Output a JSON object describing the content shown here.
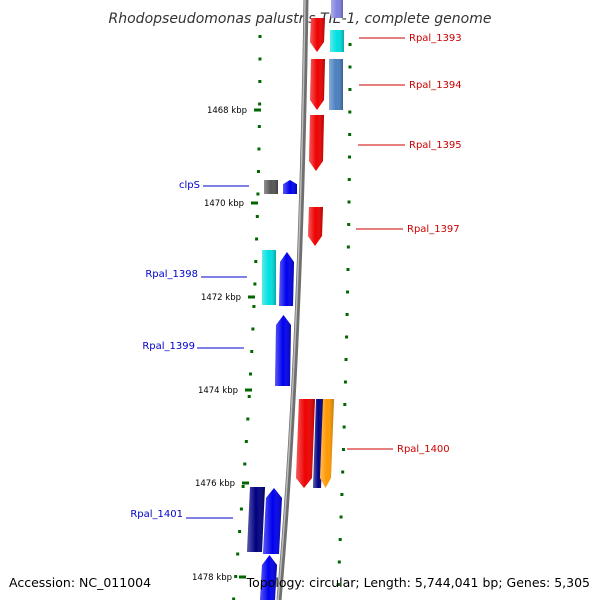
{
  "title": "Rhodopseudomonas palustris TIE-1, complete genome",
  "footer": {
    "accession": "Accession: NC_011004",
    "summary": "Topology: circular; Length: 5,744,041 bp; Genes: 5,305"
  },
  "colors": {
    "reverse_label": "#cc0000",
    "forward_label": "#0000cc",
    "tick": "#006600",
    "backbone": "#888888",
    "red": "#ee0000",
    "blue": "#0000ee",
    "navy": "#000080",
    "cyan": "#00e0e0",
    "steel": "#4a7fbf",
    "gray": "#555555",
    "orange": "#ff9900",
    "lavender": "#8080e0"
  },
  "ticks": [
    "1468 kbp",
    "1470 kbp",
    "1472 kbp",
    "1474 kbp",
    "1476 kbp",
    "1478 kbp"
  ],
  "labels": [
    {
      "id": "rpal-1393",
      "text": "Rpal_1393",
      "color": "reverse_label"
    },
    {
      "id": "rpal-1394",
      "text": "Rpal_1394",
      "color": "reverse_label"
    },
    {
      "id": "rpal-1395",
      "text": "Rpal_1395",
      "color": "reverse_label"
    },
    {
      "id": "rpal-1397",
      "text": "Rpal_1397",
      "color": "reverse_label"
    },
    {
      "id": "rpal-1400",
      "text": "Rpal_1400",
      "color": "reverse_label"
    },
    {
      "id": "clps",
      "text": "clpS",
      "color": "forward_label"
    },
    {
      "id": "rpal-1398",
      "text": "Rpal_1398",
      "color": "forward_label"
    },
    {
      "id": "rpal-1399",
      "text": "Rpal_1399",
      "color": "forward_label"
    },
    {
      "id": "rpal-1401",
      "text": "Rpal_1401",
      "color": "forward_label"
    }
  ]
}
